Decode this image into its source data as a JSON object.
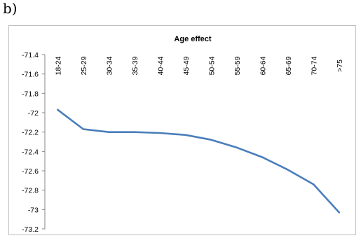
{
  "panel_label": "b)",
  "chart_data": {
    "type": "line",
    "title": "Age effect",
    "xlabel": "",
    "ylabel": "",
    "categories": [
      "18-24",
      "25-29",
      "30-34",
      "35-39",
      "40-44",
      "45-49",
      "50-54",
      "55-59",
      "60-64",
      "65-69",
      "70-74",
      ">75"
    ],
    "series": [
      {
        "values": [
          -71.97,
          -72.17,
          -72.2,
          -72.2,
          -72.21,
          -72.23,
          -72.28,
          -72.36,
          -72.46,
          -72.59,
          -72.74,
          -73.03
        ],
        "color": "#4a7ebb"
      }
    ],
    "ylim": [
      -73.2,
      -71.4
    ],
    "yticks": [
      -71.4,
      -71.6,
      -71.8,
      -72,
      -72.2,
      -72.4,
      -72.6,
      -72.8,
      -73,
      -73.2
    ],
    "grid": false,
    "legend": "none",
    "category_labels_position": "top"
  }
}
